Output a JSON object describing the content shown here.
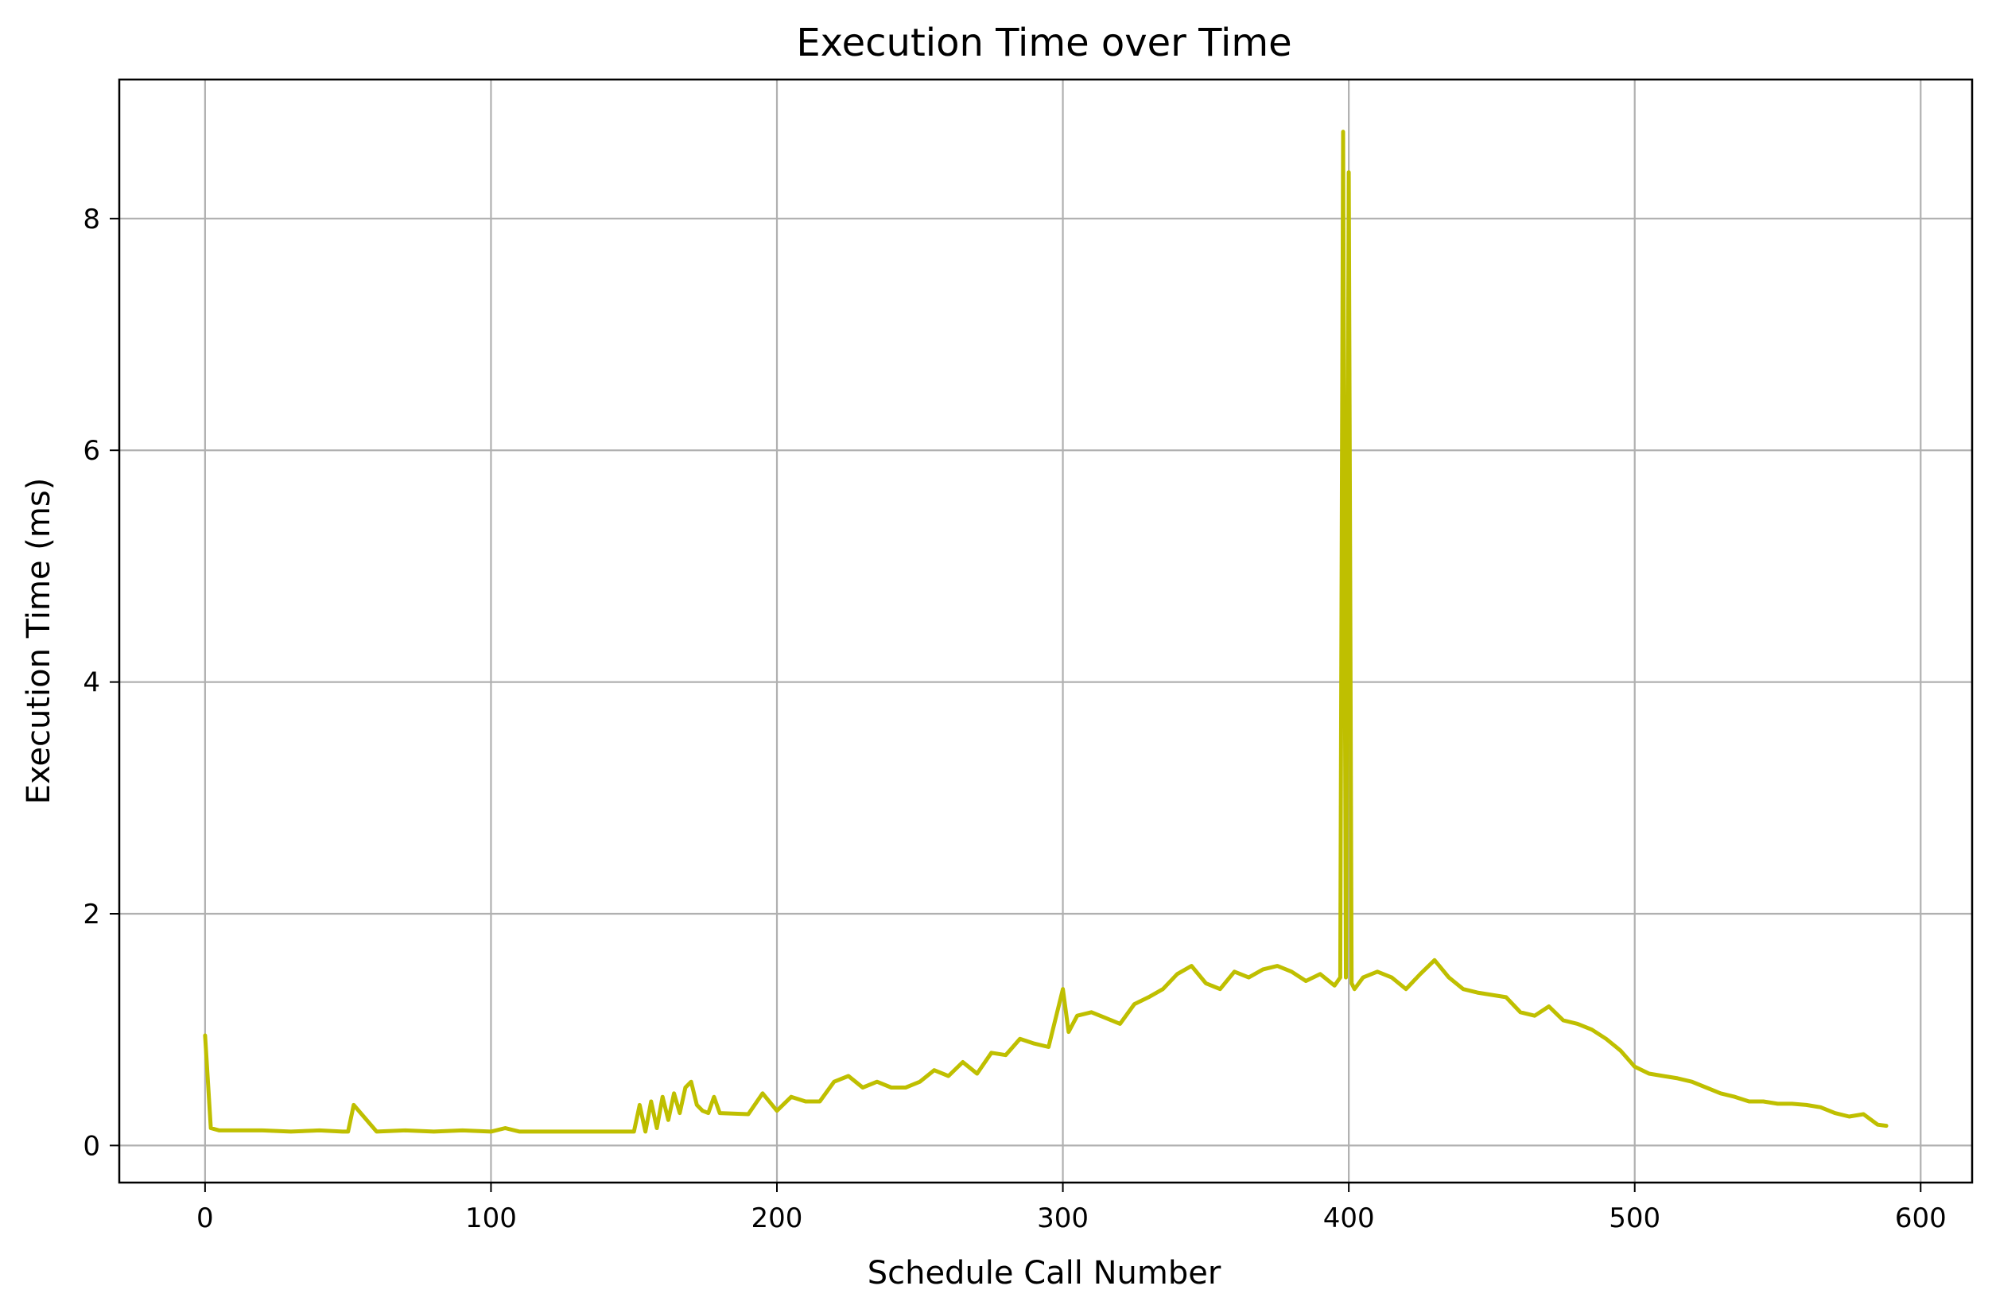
{
  "chart_data": {
    "type": "line",
    "title": "Execution Time over Time",
    "xlabel": "Schedule Call Number",
    "ylabel": "Execution Time (ms)",
    "xlim": [
      -30,
      618
    ],
    "ylim": [
      -0.32,
      9.2
    ],
    "xticks": [
      0,
      100,
      200,
      300,
      400,
      500,
      600
    ],
    "yticks": [
      0,
      2,
      4,
      6,
      8
    ],
    "grid": true,
    "line_color": "#bfbf00",
    "series": [
      {
        "x": [
          0,
          2,
          5,
          10,
          20,
          30,
          40,
          48,
          50,
          52,
          60,
          70,
          80,
          90,
          100,
          105,
          110,
          115,
          120,
          130,
          140,
          148,
          150,
          152,
          154,
          156,
          158,
          160,
          162,
          164,
          166,
          168,
          170,
          172,
          174,
          176,
          178,
          180,
          190,
          195,
          200,
          205,
          210,
          215,
          220,
          225,
          230,
          235,
          240,
          245,
          250,
          255,
          260,
          265,
          270,
          275,
          280,
          285,
          290,
          295,
          300,
          302,
          305,
          310,
          315,
          320,
          325,
          330,
          335,
          340,
          345,
          350,
          355,
          360,
          365,
          370,
          375,
          380,
          385,
          390,
          395,
          397,
          398,
          399,
          400,
          401,
          402,
          405,
          410,
          415,
          420,
          425,
          430,
          435,
          440,
          445,
          450,
          455,
          460,
          465,
          470,
          475,
          480,
          485,
          490,
          495,
          500,
          505,
          510,
          515,
          520,
          525,
          530,
          535,
          540,
          545,
          550,
          555,
          560,
          565,
          570,
          575,
          580,
          585,
          588
        ],
        "y": [
          0.95,
          0.15,
          0.13,
          0.13,
          0.13,
          0.12,
          0.13,
          0.12,
          0.12,
          0.35,
          0.12,
          0.13,
          0.12,
          0.13,
          0.12,
          0.15,
          0.12,
          0.12,
          0.12,
          0.12,
          0.12,
          0.12,
          0.12,
          0.35,
          0.12,
          0.38,
          0.15,
          0.42,
          0.22,
          0.45,
          0.28,
          0.5,
          0.55,
          0.35,
          0.3,
          0.28,
          0.42,
          0.28,
          0.27,
          0.45,
          0.3,
          0.42,
          0.38,
          0.38,
          0.55,
          0.6,
          0.5,
          0.55,
          0.5,
          0.5,
          0.55,
          0.65,
          0.6,
          0.72,
          0.62,
          0.8,
          0.78,
          0.92,
          0.88,
          0.85,
          1.35,
          0.98,
          1.12,
          1.15,
          1.1,
          1.05,
          1.22,
          1.28,
          1.35,
          1.48,
          1.55,
          1.4,
          1.35,
          1.5,
          1.45,
          1.52,
          1.55,
          1.5,
          1.42,
          1.48,
          1.38,
          1.45,
          8.75,
          1.45,
          8.4,
          1.4,
          1.35,
          1.45,
          1.5,
          1.45,
          1.35,
          1.48,
          1.6,
          1.45,
          1.35,
          1.32,
          1.3,
          1.28,
          1.15,
          1.12,
          1.2,
          1.08,
          1.05,
          1.0,
          0.92,
          0.82,
          0.68,
          0.62,
          0.6,
          0.58,
          0.55,
          0.5,
          0.45,
          0.42,
          0.38,
          0.38,
          0.36,
          0.36,
          0.35,
          0.33,
          0.28,
          0.25,
          0.27,
          0.18,
          0.17
        ]
      }
    ]
  }
}
